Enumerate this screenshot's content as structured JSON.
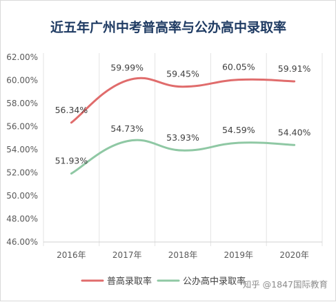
{
  "chart_data": {
    "type": "line",
    "title": "近五年广州中考普高率与公办高中录取率",
    "categories": [
      "2016年",
      "2017年",
      "2018年",
      "2019年",
      "2020年"
    ],
    "y_ticks": [
      "46.00%",
      "48.00%",
      "50.00%",
      "52.00%",
      "54.00%",
      "56.00%",
      "58.00%",
      "60.00%",
      "62.00%"
    ],
    "ylim": [
      46,
      62
    ],
    "smooth": true,
    "grid": "vertical",
    "legend_position": "bottom",
    "series": [
      {
        "name": "普高录取率",
        "values": [
          56.34,
          59.99,
          59.45,
          60.05,
          59.91
        ],
        "labels": [
          "56.34%",
          "59.99%",
          "59.45%",
          "60.05%",
          "59.91%"
        ],
        "color": "#e06c6c"
      },
      {
        "name": "公办高中录取率",
        "values": [
          51.93,
          54.73,
          53.93,
          54.59,
          54.4
        ],
        "labels": [
          "51.93%",
          "54.73%",
          "53.93%",
          "54.59%",
          "54.40%"
        ],
        "color": "#8fc8a4"
      }
    ]
  },
  "watermark": "知乎 @1847国际教育"
}
